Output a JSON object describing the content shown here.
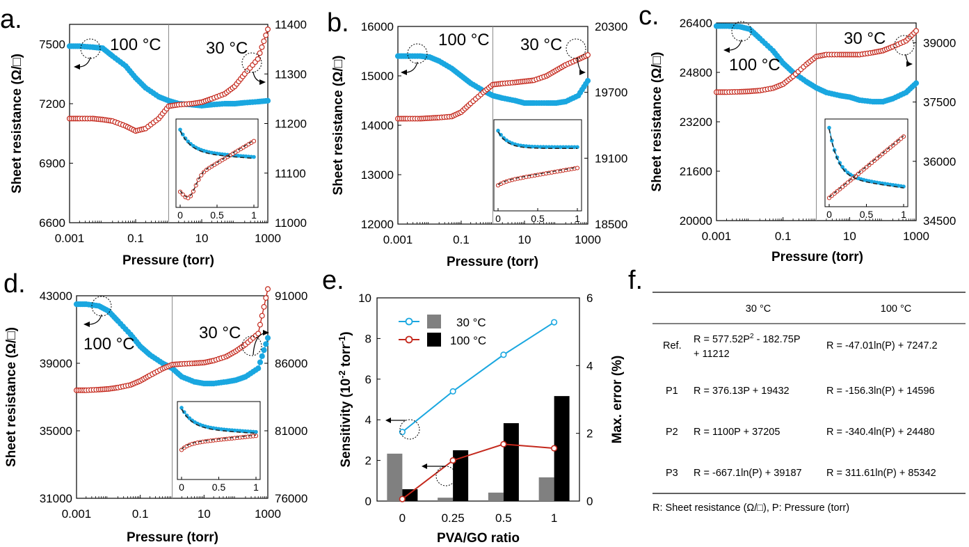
{
  "panels": [
    {
      "label": "a.",
      "xlabel": "Pressure (torr)",
      "ylabel": "Sheet resistance (Ω/□)",
      "x_ticks": [
        "0.001",
        "0.1",
        "10",
        "1000"
      ],
      "y_left_ticks": [
        "6600",
        "6900",
        "7200",
        "7500"
      ],
      "y_right_ticks": [
        "11000",
        "11100",
        "11200",
        "11300",
        "11400"
      ],
      "annotation_100": "100 °C",
      "annotation_30": "30 °C",
      "inset_x_ticks": [
        "0",
        "0.5",
        "1"
      ]
    },
    {
      "label": "b.",
      "xlabel": "Pressure (torr)",
      "ylabel": "Sheet resistance (Ω/□)",
      "x_ticks": [
        "0.001",
        "0.1",
        "10",
        "1000"
      ],
      "y_left_ticks": [
        "12000",
        "13000",
        "14000",
        "15000",
        "16000"
      ],
      "y_right_ticks": [
        "18500",
        "19100",
        "19700",
        "20300"
      ],
      "annotation_100": "100 °C",
      "annotation_30": "30 °C",
      "inset_x_ticks": [
        "0",
        "0.5",
        "1"
      ]
    },
    {
      "label": "c.",
      "xlabel": "Pressure (torr)",
      "ylabel": "Sheet resistance (Ω/□)",
      "x_ticks": [
        "0.001",
        "0.1",
        "10",
        "1000"
      ],
      "y_left_ticks": [
        "20000",
        "21600",
        "23200",
        "24800",
        "26400"
      ],
      "y_right_ticks": [
        "34500",
        "36000",
        "37500",
        "39000"
      ],
      "annotation_100": "100 °C",
      "annotation_30": "30 °C",
      "inset_x_ticks": [
        "0",
        "0.5",
        "1"
      ]
    },
    {
      "label": "d.",
      "xlabel": "Pressure (torr)",
      "ylabel": "Sheet resistance (Ω/□)",
      "x_ticks": [
        "0.001",
        "0.1",
        "10",
        "1000"
      ],
      "y_left_ticks": [
        "31000",
        "35000",
        "39000",
        "43000"
      ],
      "y_right_ticks": [
        "76000",
        "81000",
        "86000",
        "91000"
      ],
      "annotation_100": "100 °C",
      "annotation_30": "30 °C",
      "inset_x_ticks": [
        "0",
        "0.5",
        "1"
      ]
    }
  ],
  "chart_data": [
    {
      "type": "line",
      "panel": "a.",
      "x_scale": "log",
      "xlim": [
        0.001,
        1000
      ],
      "xlabel": "Pressure (torr)",
      "ylabel": "Sheet resistance (Ω/□)",
      "ylim_left": [
        6600,
        7600
      ],
      "ylim_right": [
        11000,
        11400
      ],
      "series": [
        {
          "name": "100 °C",
          "axis": "left",
          "color": "#1aa7e0",
          "x": [
            0.001,
            0.002,
            0.005,
            0.01,
            0.02,
            0.05,
            0.1,
            0.2,
            0.5,
            1,
            2,
            5,
            10,
            20,
            50,
            100,
            200,
            500,
            1000
          ],
          "y": [
            7490,
            7490,
            7485,
            7480,
            7440,
            7390,
            7330,
            7280,
            7235,
            7215,
            7200,
            7195,
            7190,
            7195,
            7200,
            7200,
            7205,
            7210,
            7215
          ]
        },
        {
          "name": "30 °C",
          "axis": "right",
          "color": "#c4281c",
          "x": [
            0.001,
            0.002,
            0.005,
            0.01,
            0.02,
            0.05,
            0.1,
            0.2,
            0.5,
            1,
            2,
            5,
            10,
            20,
            50,
            100,
            200,
            500,
            1000
          ],
          "y": [
            11210,
            11210,
            11210,
            11208,
            11205,
            11195,
            11185,
            11190,
            11210,
            11235,
            11238,
            11240,
            11243,
            11250,
            11260,
            11275,
            11300,
            11330,
            11390
          ]
        }
      ]
    },
    {
      "type": "line",
      "panel": "b.",
      "x_scale": "log",
      "xlim": [
        0.001,
        1000
      ],
      "xlabel": "Pressure (torr)",
      "ylabel": "Sheet resistance (Ω/□)",
      "ylim_left": [
        12000,
        16000
      ],
      "ylim_right": [
        18500,
        20300
      ],
      "series": [
        {
          "name": "100 °C",
          "axis": "left",
          "color": "#1aa7e0",
          "x": [
            0.001,
            0.002,
            0.005,
            0.01,
            0.02,
            0.05,
            0.1,
            0.2,
            0.5,
            1,
            2,
            5,
            10,
            20,
            50,
            100,
            200,
            500,
            1000
          ],
          "y": [
            15400,
            15400,
            15400,
            15380,
            15300,
            15150,
            15000,
            14850,
            14700,
            14600,
            14550,
            14500,
            14450,
            14450,
            14450,
            14450,
            14480,
            14600,
            14900
          ]
        },
        {
          "name": "30 °C",
          "axis": "right",
          "color": "#c4281c",
          "x": [
            0.001,
            0.002,
            0.005,
            0.01,
            0.02,
            0.05,
            0.1,
            0.2,
            0.5,
            1,
            2,
            5,
            10,
            20,
            50,
            100,
            200,
            500,
            1000
          ],
          "y": [
            19460,
            19460,
            19460,
            19465,
            19470,
            19480,
            19520,
            19600,
            19700,
            19770,
            19780,
            19790,
            19800,
            19810,
            19850,
            19900,
            19950,
            20000,
            20040
          ]
        }
      ]
    },
    {
      "type": "line",
      "panel": "c.",
      "x_scale": "log",
      "xlim": [
        0.001,
        1000
      ],
      "xlabel": "Pressure (torr)",
      "ylabel": "Sheet resistance (Ω/□)",
      "ylim_left": [
        20000,
        26400
      ],
      "ylim_right": [
        34500,
        39500
      ],
      "series": [
        {
          "name": "100 °C",
          "axis": "left",
          "color": "#1aa7e0",
          "x": [
            0.001,
            0.002,
            0.005,
            0.01,
            0.02,
            0.05,
            0.1,
            0.2,
            0.5,
            1,
            2,
            5,
            10,
            20,
            50,
            100,
            200,
            500,
            1000
          ],
          "y": [
            26300,
            26300,
            26280,
            26200,
            25900,
            25500,
            25100,
            24800,
            24500,
            24300,
            24150,
            24050,
            24000,
            23900,
            23850,
            23850,
            23950,
            24150,
            24450
          ]
        },
        {
          "name": "30 °C",
          "axis": "right",
          "color": "#c4281c",
          "x": [
            0.001,
            0.002,
            0.005,
            0.01,
            0.02,
            0.05,
            0.1,
            0.2,
            0.5,
            1,
            2,
            5,
            10,
            20,
            50,
            100,
            200,
            500,
            1000
          ],
          "y": [
            37750,
            37750,
            37760,
            37770,
            37790,
            37850,
            37950,
            38150,
            38450,
            38650,
            38700,
            38700,
            38700,
            38700,
            38750,
            38800,
            38900,
            39050,
            39300
          ]
        }
      ]
    },
    {
      "type": "line",
      "panel": "d.",
      "x_scale": "log",
      "xlim": [
        0.001,
        1000
      ],
      "xlabel": "Pressure (torr)",
      "ylabel": "Sheet resistance (Ω/□)",
      "ylim_left": [
        31000,
        43000
      ],
      "ylim_right": [
        76000,
        91000
      ],
      "series": [
        {
          "name": "100 °C",
          "axis": "left",
          "color": "#1aa7e0",
          "x": [
            0.001,
            0.002,
            0.005,
            0.01,
            0.02,
            0.05,
            0.1,
            0.2,
            0.5,
            1,
            2,
            5,
            10,
            20,
            50,
            100,
            200,
            500,
            1000
          ],
          "y": [
            42500,
            42500,
            42400,
            42100,
            41500,
            40700,
            40000,
            39500,
            39000,
            38700,
            38200,
            37900,
            37800,
            37800,
            37900,
            38000,
            38200,
            38700,
            40500
          ]
        },
        {
          "name": "30 °C",
          "axis": "right",
          "color": "#c4281c",
          "x": [
            0.001,
            0.002,
            0.005,
            0.01,
            0.02,
            0.05,
            0.1,
            0.2,
            0.5,
            1,
            2,
            5,
            10,
            20,
            50,
            100,
            200,
            500,
            1000
          ],
          "y": [
            84000,
            84000,
            84050,
            84100,
            84200,
            84400,
            84700,
            85100,
            85600,
            85900,
            85950,
            86000,
            86050,
            86200,
            86500,
            86900,
            87400,
            88200,
            91500
          ]
        }
      ]
    },
    {
      "type": "bar",
      "panel": "e.",
      "categories": [
        "0",
        "0.25",
        "0.5",
        "1"
      ],
      "xlabel": "PVA/GO ratio",
      "ylabel_left": "Sensitivity (10-2 torr-1)",
      "ylabel_right": "Max. error (%)",
      "ylim_left": [
        0,
        10
      ],
      "ylim_right": [
        0,
        6
      ],
      "left_ticks": [
        "0",
        "2",
        "4",
        "6",
        "8",
        "10"
      ],
      "right_ticks": [
        "0",
        "2",
        "4",
        "6"
      ],
      "lines": [
        {
          "name": "30 °C",
          "axis": "left",
          "color": "#1aa7e0",
          "values": [
            3.4,
            5.4,
            7.2,
            8.8
          ]
        },
        {
          "name": "100 °C",
          "axis": "left",
          "color": "#c4281c",
          "values": [
            0.1,
            2.0,
            2.8,
            2.6
          ]
        }
      ],
      "bars": [
        {
          "name": "30 °C",
          "axis": "right",
          "color": "#808080",
          "values": [
            1.4,
            0.1,
            0.25,
            0.7
          ]
        },
        {
          "name": "100 °C",
          "axis": "right",
          "color": "#000000",
          "values": [
            0.35,
            1.5,
            2.3,
            3.1
          ]
        }
      ],
      "legend": [
        "30 °C",
        "100 °C"
      ],
      "legend_position": "top-left"
    },
    {
      "type": "table",
      "panel": "f.",
      "columns": [
        "",
        "30 °C",
        "100 °C"
      ],
      "rows": [
        [
          "Ref.",
          "R = 577.52P² - 182.75P + 11212",
          "R = -47.01ln(P) + 7247.2"
        ],
        [
          "P1",
          "R = 376.13P + 19432",
          "R = -156.3ln(P) + 14596"
        ],
        [
          "P2",
          "R = 1100P + 37205",
          "R = -340.4ln(P) + 24480"
        ],
        [
          "P3",
          "R = -667.1ln(P) + 39187",
          "R = 311.61ln(P) + 85342"
        ]
      ]
    }
  ],
  "panel_e": {
    "label": "e.",
    "xlabel": "PVA/GO ratio",
    "ylabel_left": "Sensitivity (10",
    "ylabel_left_sup1": "-2",
    "ylabel_left_mid": " torr",
    "ylabel_left_sup2": "-1",
    "ylabel_left_end": ")",
    "ylabel_right": "Max. error (%)",
    "legend_30": "30 °C",
    "legend_100": "100 °C"
  },
  "panel_f": {
    "label": "f.",
    "col_30": "30 °C",
    "col_100": "100 °C",
    "ref_label": "Ref.",
    "ref_30_line1": "R = 577.52P",
    "ref_30_sup": "2",
    "ref_30_line1_end": " - 182.75P",
    "ref_30_line2": "+ 11212",
    "ref_100": "R = -47.01ln(P) + 7247.2",
    "p1_label": "P1",
    "p1_30": "R = 376.13P + 19432",
    "p1_100": "R = -156.3ln(P) + 14596",
    "p2_label": "P2",
    "p2_30": "R = 1100P + 37205",
    "p2_100": "R = -340.4ln(P) + 24480",
    "p3_label": "P3",
    "p3_30": "R = -667.1ln(P) + 39187",
    "p3_100": "R = 311.61ln(P) + 85342",
    "footnote": "R: Sheet resistance (Ω/□), P: Pressure (torr)"
  },
  "colors": {
    "blue": "#1aa7e0",
    "red": "#c4281c",
    "gray_bar": "#808080",
    "black_bar": "#000000"
  }
}
